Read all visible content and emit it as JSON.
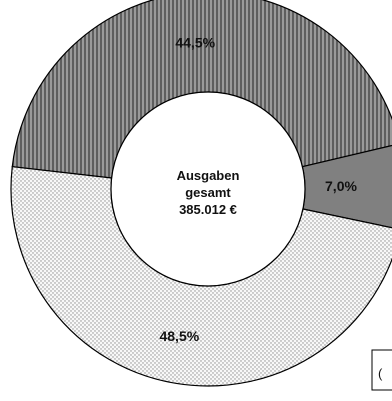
{
  "chart_data": {
    "type": "pie",
    "variant": "donut",
    "center_label": [
      "Ausgaben",
      "gesamt",
      "385.012 €"
    ],
    "slices": [
      {
        "value": 44.5,
        "label": "44,5%",
        "pattern": "vertical-stripes",
        "color": "#8a8a8a"
      },
      {
        "value": 7.0,
        "label": "7,0%",
        "pattern": "solid",
        "color": "#808080"
      },
      {
        "value": 48.5,
        "label": "48,5%",
        "pattern": "dots",
        "color": "#f5f5f5"
      }
    ],
    "legend_partial_text": "("
  }
}
